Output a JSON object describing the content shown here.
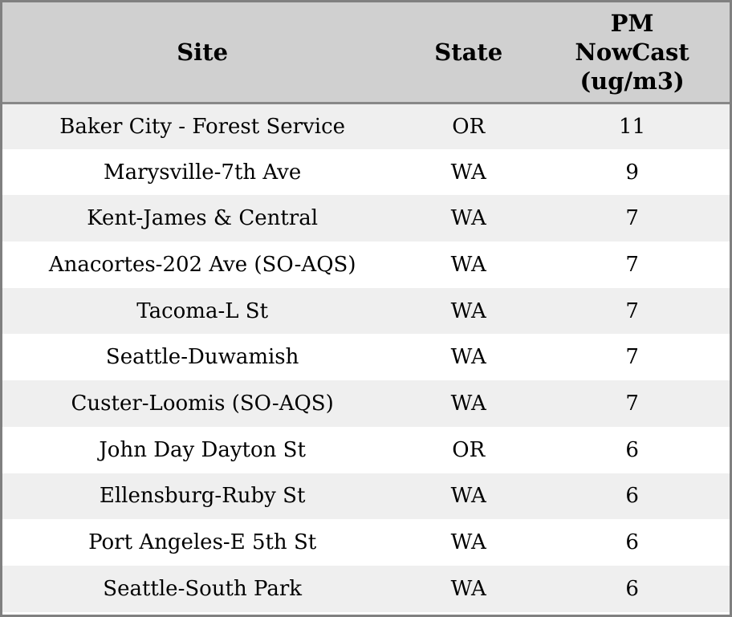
{
  "chart_data": {
    "type": "table",
    "columns": [
      {
        "label": "Site"
      },
      {
        "label": "State"
      },
      {
        "label": "PM NowCast (ug/m3)",
        "lines": [
          "PM",
          "NowCast",
          "(ug/m3)"
        ]
      }
    ],
    "rows": [
      {
        "site": "Baker City - Forest Service",
        "state": "OR",
        "pm_nowcast": 11
      },
      {
        "site": "Marysville-7th Ave",
        "state": "WA",
        "pm_nowcast": 9
      },
      {
        "site": "Kent-James & Central",
        "state": "WA",
        "pm_nowcast": 7
      },
      {
        "site": "Anacortes-202 Ave (SO-AQS)",
        "state": "WA",
        "pm_nowcast": 7
      },
      {
        "site": "Tacoma-L St",
        "state": "WA",
        "pm_nowcast": 7
      },
      {
        "site": "Seattle-Duwamish",
        "state": "WA",
        "pm_nowcast": 7
      },
      {
        "site": "Custer-Loomis (SO-AQS)",
        "state": "WA",
        "pm_nowcast": 7
      },
      {
        "site": "John Day Dayton St",
        "state": "OR",
        "pm_nowcast": 6
      },
      {
        "site": "Ellensburg-Ruby St",
        "state": "WA",
        "pm_nowcast": 6
      },
      {
        "site": "Port Angeles-E 5th St",
        "state": "WA",
        "pm_nowcast": 6
      },
      {
        "site": "Seattle-South Park",
        "state": "WA",
        "pm_nowcast": 6
      }
    ],
    "colors": {
      "outer_border": "#808080",
      "header_bg": "#d0d0d0",
      "header_separator": "#888888",
      "row_alt_bg": "#efefef",
      "row_bg": "#ffffff",
      "text": "#000000"
    }
  }
}
